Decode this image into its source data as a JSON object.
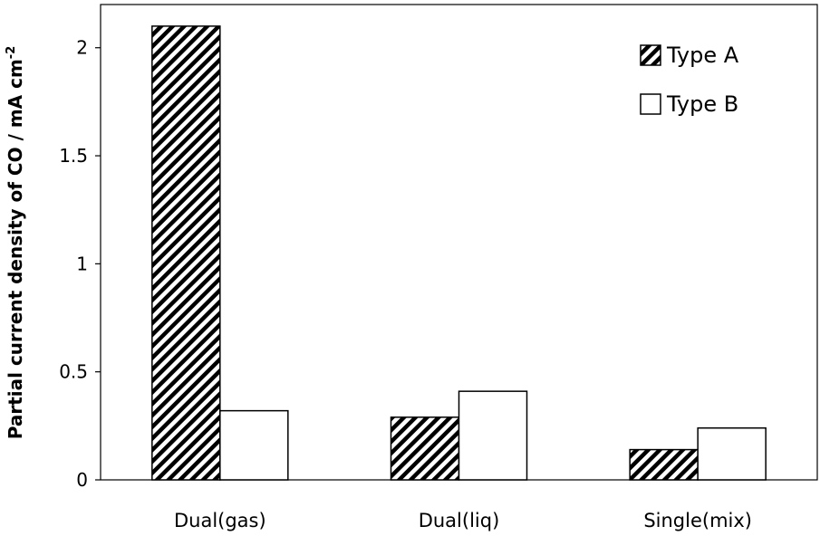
{
  "chart_data": {
    "type": "bar",
    "title": "",
    "xlabel": "",
    "ylabel": "Partial current density of CO / mA cm",
    "ylabel_superscript": "-2",
    "categories": [
      "Dual(gas)",
      "Dual(liq)",
      "Single(mix)"
    ],
    "series": [
      {
        "name": "Type A",
        "values": [
          2.1,
          0.29,
          0.14
        ],
        "fill": "hatch"
      },
      {
        "name": "Type B",
        "values": [
          0.32,
          0.41,
          0.24
        ],
        "fill": "white"
      }
    ],
    "ylim": [
      0,
      2.2
    ],
    "yticks": [
      0,
      0.5,
      1,
      1.5,
      2
    ],
    "ytick_labels": [
      "0",
      "0.5",
      "1",
      "1.5",
      "2"
    ],
    "grid": false,
    "legend_position": "top-right"
  },
  "colors": {
    "stroke": "#000000",
    "hatch": "#000000",
    "background": "#ffffff"
  }
}
